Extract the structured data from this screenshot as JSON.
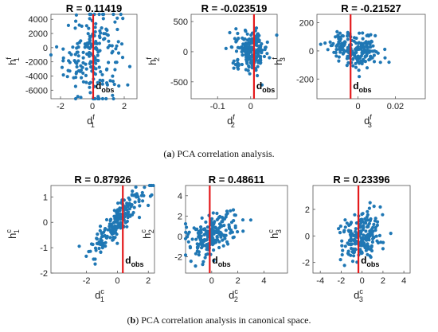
{
  "captions": [
    {
      "label": "a",
      "text": " PCA correlation analysis."
    },
    {
      "label": "b",
      "text": " PCA correlation analysis in canonical space."
    }
  ],
  "marker_color": "#1f77b4",
  "obs_line_color": "#e41a1c",
  "obs_label": "d",
  "obs_sub": "obs",
  "chart_data": [
    {
      "type": "scatter",
      "title": "R = 0.11419",
      "xlabel": {
        "base": "d",
        "sup": "f",
        "sub": "1"
      },
      "ylabel": {
        "base": "h",
        "sup": "f",
        "sub": "1"
      },
      "xlim": [
        -2.6,
        2.8
      ],
      "ylim": [
        -7200,
        4700
      ],
      "xticks": [
        -2,
        0,
        2
      ],
      "xtick_labels": [
        "-2",
        "0",
        "2"
      ],
      "yticks": [
        -6000,
        -4000,
        -2000,
        0,
        2000,
        4000
      ],
      "ytick_labels": [
        "-6000",
        "-4000",
        "-2000",
        "0",
        "2000",
        "4000"
      ],
      "obs_x": 0.05,
      "n_points": 200,
      "correlation": 0.11419,
      "spread_x": 0.9,
      "spread_y": 3300,
      "center_y": -900,
      "grid": false
    },
    {
      "type": "scatter",
      "title": "R = -0.023519",
      "xlabel": {
        "base": "d",
        "sup": "f",
        "sub": "2"
      },
      "ylabel": {
        "base": "h",
        "sup": "f",
        "sub": "2"
      },
      "xlim": [
        -0.18,
        0.08
      ],
      "ylim": [
        -780,
        620
      ],
      "xticks": [
        -0.1,
        0
      ],
      "xtick_labels": [
        "-0.1",
        "0"
      ],
      "yticks": [
        -500,
        0,
        500
      ],
      "ytick_labels": [
        "-500",
        "0",
        "500"
      ],
      "obs_x": 0.01,
      "n_points": 200,
      "correlation": -0.023519,
      "spread_x": 0.025,
      "spread_y": 160,
      "center_y": 20,
      "grid": false
    },
    {
      "type": "scatter",
      "title": "R = -0.21527",
      "xlabel": {
        "base": "d",
        "sup": "f",
        "sub": "3"
      },
      "ylabel": {
        "base": "h",
        "sup": "f",
        "sub": "3"
      },
      "xlim": [
        -0.022,
        0.036
      ],
      "ylim": [
        -340,
        260
      ],
      "xticks": [
        0,
        0.02
      ],
      "xtick_labels": [
        "0",
        "0.02"
      ],
      "yticks": [
        -200,
        0,
        200
      ],
      "ytick_labels": [
        "-200",
        "0",
        "200"
      ],
      "obs_x": -0.004,
      "n_points": 200,
      "correlation": -0.21527,
      "spread_x": 0.007,
      "spread_y": 60,
      "center_y": 10,
      "grid": false
    },
    {
      "type": "scatter",
      "title": "R = 0.87926",
      "xlabel": {
        "base": "d",
        "sup": "c",
        "sub": "1"
      },
      "ylabel": {
        "base": "h",
        "sup": "c",
        "sub": "1"
      },
      "xlim": [
        -4.3,
        2.4
      ],
      "ylim": [
        -2.0,
        1.45
      ],
      "xticks": [
        -2,
        0,
        2
      ],
      "xtick_labels": [
        "-2",
        "0",
        "2"
      ],
      "yticks": [
        -2,
        -1,
        0,
        1
      ],
      "ytick_labels": [
        "-2",
        "-1",
        "0",
        "1"
      ],
      "obs_x": 0.35,
      "n_points": 200,
      "correlation": 0.87926,
      "spread_x": 0.9,
      "spread_y": 0.7,
      "center_y": 0.1,
      "grid": false
    },
    {
      "type": "scatter",
      "title": "R = 0.48611",
      "xlabel": {
        "base": "d",
        "sup": "c",
        "sub": "2"
      },
      "ylabel": {
        "base": "h",
        "sup": "c",
        "sub": "2"
      },
      "xlim": [
        -2.0,
        5.8
      ],
      "ylim": [
        -3.6,
        5.0
      ],
      "xticks": [
        0,
        2,
        4
      ],
      "xtick_labels": [
        "0",
        "2",
        "4"
      ],
      "yticks": [
        -2,
        0,
        2,
        4
      ],
      "ytick_labels": [
        "-2",
        "0",
        "2",
        "4"
      ],
      "obs_x": -0.15,
      "n_points": 200,
      "correlation": 0.48611,
      "spread_x": 0.9,
      "spread_y": 1.1,
      "center_y": 0.2,
      "grid": false
    },
    {
      "type": "scatter",
      "title": "R = 0.23396",
      "xlabel": {
        "base": "d",
        "sup": "c",
        "sub": "3"
      },
      "ylabel": {
        "base": "h",
        "sup": "c",
        "sub": "3"
      },
      "xlim": [
        -4.7,
        4.6
      ],
      "ylim": [
        -2.8,
        3.8
      ],
      "xticks": [
        -4,
        -2,
        0,
        2,
        4
      ],
      "xtick_labels": [
        "-4",
        "-2",
        "0",
        "2",
        "4"
      ],
      "yticks": [
        -2,
        0,
        2
      ],
      "ytick_labels": [
        "-2",
        "0",
        "2"
      ],
      "obs_x": -0.35,
      "n_points": 200,
      "correlation": 0.23396,
      "spread_x": 0.9,
      "spread_y": 1.0,
      "center_y": 0.0,
      "grid": false
    }
  ]
}
